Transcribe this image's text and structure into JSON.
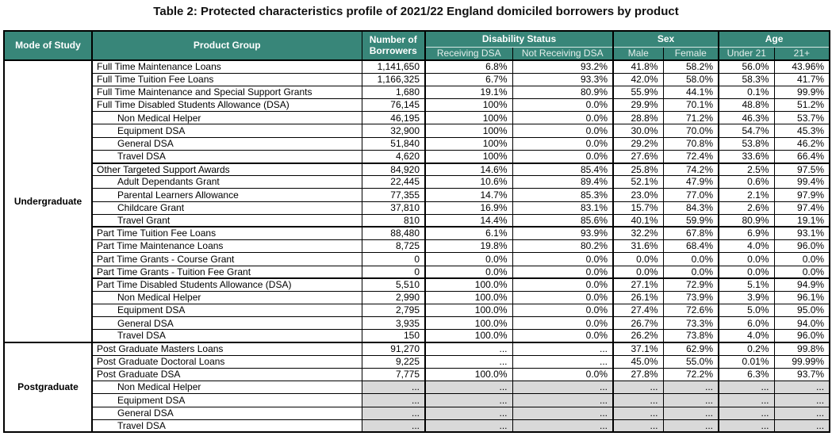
{
  "title": "Table 2: Protected characteristics profile of 2021/22 England domiciled borrowers by product",
  "colors": {
    "header_bg": "#388679",
    "header_text": "#FFFFFF",
    "subheader_text": "#E2EDEA",
    "suppressed_cell_bg": "#D9D9D9",
    "border": "#000000"
  },
  "header": {
    "mode_of_study": "Mode of Study",
    "product_group": "Product Group",
    "number_of_borrowers": "Number of Borrowers",
    "groups": [
      {
        "label": "Disability Status",
        "children": [
          "Receiving DSA",
          "Not Receiving DSA"
        ]
      },
      {
        "label": "Sex",
        "children": [
          "Male",
          "Female"
        ]
      },
      {
        "label": "Age",
        "children": [
          "Under 21",
          "21+"
        ]
      }
    ]
  },
  "sections": [
    {
      "mode": "Undergraduate",
      "rows": [
        {
          "product": "Full Time Maintenance Loans",
          "indent": false,
          "thickTop": false,
          "grey": false,
          "values": [
            "1,141,650",
            "6.8%",
            "93.2%",
            "41.8%",
            "58.2%",
            "56.0%",
            "43.96%"
          ]
        },
        {
          "product": "Full Time Tuition Fee Loans",
          "indent": false,
          "thickTop": false,
          "grey": false,
          "values": [
            "1,166,325",
            "6.7%",
            "93.3%",
            "42.0%",
            "58.0%",
            "58.3%",
            "41.7%"
          ]
        },
        {
          "product": "Full Time Maintenance and Special Support Grants",
          "indent": false,
          "thickTop": false,
          "grey": false,
          "values": [
            "1,680",
            "19.1%",
            "80.9%",
            "55.9%",
            "44.1%",
            "0.1%",
            "99.9%"
          ]
        },
        {
          "product": "Full Time Disabled Students Allowance (DSA)",
          "indent": false,
          "thickTop": false,
          "grey": false,
          "values": [
            "76,145",
            "100%",
            "0.0%",
            "29.9%",
            "70.1%",
            "48.8%",
            "51.2%"
          ]
        },
        {
          "product": "Non Medical Helper",
          "indent": true,
          "thickTop": false,
          "grey": false,
          "values": [
            "46,195",
            "100%",
            "0.0%",
            "28.8%",
            "71.2%",
            "46.3%",
            "53.7%"
          ]
        },
        {
          "product": "Equipment DSA",
          "indent": true,
          "thickTop": false,
          "grey": false,
          "values": [
            "32,900",
            "100%",
            "0.0%",
            "30.0%",
            "70.0%",
            "54.7%",
            "45.3%"
          ]
        },
        {
          "product": "General DSA",
          "indent": true,
          "thickTop": false,
          "grey": false,
          "values": [
            "51,840",
            "100%",
            "0.0%",
            "29.2%",
            "70.8%",
            "53.8%",
            "46.2%"
          ]
        },
        {
          "product": "Travel DSA",
          "indent": true,
          "thickTop": false,
          "grey": false,
          "values": [
            "4,620",
            "100%",
            "0.0%",
            "27.6%",
            "72.4%",
            "33.6%",
            "66.4%"
          ]
        },
        {
          "product": "Other Targeted Support Awards",
          "indent": false,
          "thickTop": true,
          "grey": false,
          "values": [
            "84,920",
            "14.6%",
            "85.4%",
            "25.8%",
            "74.2%",
            "2.5%",
            "97.5%"
          ]
        },
        {
          "product": "Adult Dependants Grant",
          "indent": true,
          "thickTop": false,
          "grey": false,
          "values": [
            "22,445",
            "10.6%",
            "89.4%",
            "52.1%",
            "47.9%",
            "0.6%",
            "99.4%"
          ]
        },
        {
          "product": "Parental Learners Allowance",
          "indent": true,
          "thickTop": false,
          "grey": false,
          "values": [
            "77,355",
            "14.7%",
            "85.3%",
            "23.0%",
            "77.0%",
            "2.1%",
            "97.9%"
          ]
        },
        {
          "product": "Childcare Grant",
          "indent": true,
          "thickTop": false,
          "grey": false,
          "values": [
            "37,810",
            "16.9%",
            "83.1%",
            "15.7%",
            "84.3%",
            "2.6%",
            "97.4%"
          ]
        },
        {
          "product": "Travel Grant",
          "indent": true,
          "thickTop": false,
          "grey": false,
          "values": [
            "810",
            "14.4%",
            "85.6%",
            "40.1%",
            "59.9%",
            "80.9%",
            "19.1%"
          ]
        },
        {
          "product": "Part Time Tuition Fee Loans",
          "indent": false,
          "thickTop": true,
          "grey": false,
          "values": [
            "88,480",
            "6.1%",
            "93.9%",
            "32.2%",
            "67.8%",
            "6.9%",
            "93.1%"
          ]
        },
        {
          "product": "Part Time Maintenance Loans",
          "indent": false,
          "thickTop": false,
          "grey": false,
          "values": [
            "8,725",
            "19.8%",
            "80.2%",
            "31.6%",
            "68.4%",
            "4.0%",
            "96.0%"
          ]
        },
        {
          "product": "Part Time Grants - Course Grant",
          "indent": false,
          "thickTop": false,
          "grey": false,
          "values": [
            "0",
            "0.0%",
            "0.0%",
            "0.0%",
            "0.0%",
            "0.0%",
            "0.0%"
          ]
        },
        {
          "product": "Part Time Grants - Tuition Fee Grant",
          "indent": false,
          "thickTop": false,
          "grey": false,
          "values": [
            "0",
            "0.0%",
            "0.0%",
            "0.0%",
            "0.0%",
            "0.0%",
            "0.0%"
          ]
        },
        {
          "product": "Part Time Disabled Students Allowance (DSA)",
          "indent": false,
          "thickTop": true,
          "grey": false,
          "values": [
            "5,510",
            "100.0%",
            "0.0%",
            "27.1%",
            "72.9%",
            "5.1%",
            "94.9%"
          ]
        },
        {
          "product": "Non Medical Helper",
          "indent": true,
          "thickTop": false,
          "grey": false,
          "values": [
            "2,990",
            "100.0%",
            "0.0%",
            "26.1%",
            "73.9%",
            "3.9%",
            "96.1%"
          ]
        },
        {
          "product": "Equipment DSA",
          "indent": true,
          "thickTop": false,
          "grey": false,
          "values": [
            "2,795",
            "100.0%",
            "0.0%",
            "27.4%",
            "72.6%",
            "5.0%",
            "95.0%"
          ]
        },
        {
          "product": "General DSA",
          "indent": true,
          "thickTop": false,
          "grey": false,
          "values": [
            "3,935",
            "100.0%",
            "0.0%",
            "26.7%",
            "73.3%",
            "6.0%",
            "94.0%"
          ]
        },
        {
          "product": "Travel DSA",
          "indent": true,
          "thickTop": false,
          "grey": false,
          "values": [
            "150",
            "100.0%",
            "0.0%",
            "26.2%",
            "73.8%",
            "4.0%",
            "96.0%"
          ]
        }
      ]
    },
    {
      "mode": "Postgraduate",
      "rows": [
        {
          "product": "Post Graduate Masters Loans",
          "indent": false,
          "thickTop": false,
          "grey": false,
          "values": [
            "91,270",
            "...",
            "...",
            "37.1%",
            "62.9%",
            "0.2%",
            "99.8%"
          ]
        },
        {
          "product": "Post Graduate Doctoral Loans",
          "indent": false,
          "thickTop": false,
          "grey": false,
          "values": [
            "9,225",
            "...",
            "...",
            "45.0%",
            "55.0%",
            "0.01%",
            "99.99%"
          ]
        },
        {
          "product": "Post Graduate DSA",
          "indent": false,
          "thickTop": false,
          "grey": false,
          "values": [
            "7,775",
            "100.0%",
            "0.0%",
            "27.8%",
            "72.2%",
            "6.3%",
            "93.7%"
          ]
        },
        {
          "product": "Non Medical Helper",
          "indent": true,
          "thickTop": false,
          "grey": true,
          "values": [
            "...",
            "...",
            "...",
            "...",
            "...",
            "...",
            "..."
          ]
        },
        {
          "product": "Equipment DSA",
          "indent": true,
          "thickTop": false,
          "grey": true,
          "values": [
            "...",
            "...",
            "...",
            "...",
            "...",
            "...",
            "..."
          ]
        },
        {
          "product": "General DSA",
          "indent": true,
          "thickTop": false,
          "grey": true,
          "values": [
            "...",
            "...",
            "...",
            "...",
            "...",
            "...",
            "..."
          ]
        },
        {
          "product": "Travel DSA",
          "indent": true,
          "thickTop": false,
          "grey": true,
          "values": [
            "...",
            "...",
            "...",
            "...",
            "...",
            "...",
            "..."
          ]
        }
      ]
    }
  ]
}
